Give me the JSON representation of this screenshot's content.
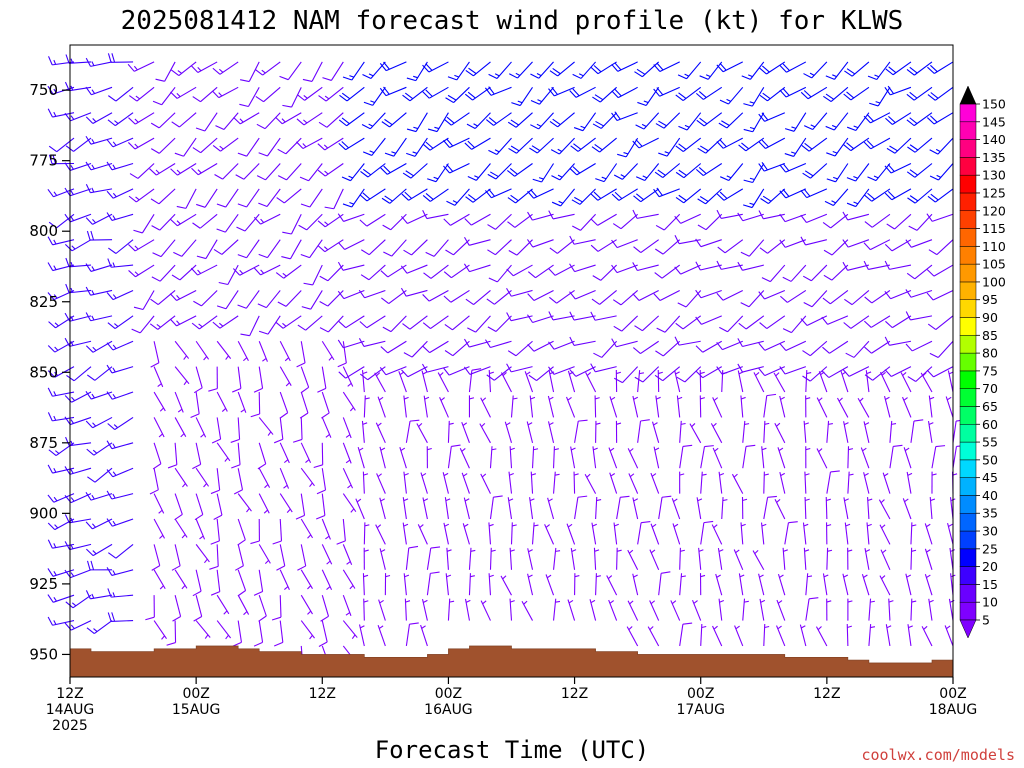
{
  "chart_data": {
    "type": "wind_profile",
    "title": "2025081412 NAM forecast wind profile (kt) for KLWS",
    "xlabel": "Forecast Time (UTC)",
    "credit": "coolwx.com/models",
    "y_axis": {
      "quantity": "pressure (hPa)",
      "range": [
        958,
        734
      ],
      "inverted": true,
      "ticks": [
        750,
        775,
        800,
        825,
        850,
        875,
        900,
        925,
        950
      ]
    },
    "x_axis": {
      "range_hours": [
        0,
        84
      ],
      "ticks": [
        {
          "hour": 0,
          "lines": [
            "12Z",
            "14AUG",
            "2025"
          ]
        },
        {
          "hour": 12,
          "lines": [
            "00Z",
            "15AUG"
          ]
        },
        {
          "hour": 24,
          "lines": [
            "12Z"
          ]
        },
        {
          "hour": 36,
          "lines": [
            "00Z",
            "16AUG"
          ]
        },
        {
          "hour": 48,
          "lines": [
            "12Z"
          ]
        },
        {
          "hour": 60,
          "lines": [
            "00Z",
            "17AUG"
          ]
        },
        {
          "hour": 72,
          "lines": [
            "12Z"
          ]
        },
        {
          "hour": 84,
          "lines": [
            "00Z",
            "18AUG"
          ]
        }
      ]
    },
    "surface_pressure": {
      "hours": [
        0,
        2,
        4,
        6,
        8,
        10,
        12,
        14,
        16,
        18,
        20,
        22,
        24,
        26,
        28,
        30,
        32,
        34,
        36,
        38,
        40,
        42,
        44,
        46,
        48,
        50,
        52,
        54,
        56,
        58,
        60,
        62,
        64,
        66,
        68,
        70,
        72,
        74,
        76,
        78,
        80,
        82,
        84
      ],
      "pressure": [
        948,
        949,
        949,
        949,
        948,
        948,
        947,
        947,
        948,
        949,
        949,
        950,
        950,
        950,
        951,
        951,
        951,
        950,
        948,
        947,
        947,
        948,
        948,
        948,
        948,
        949,
        949,
        950,
        950,
        950,
        950,
        950,
        950,
        950,
        951,
        951,
        951,
        952,
        953,
        953,
        953,
        952,
        950
      ]
    },
    "wind_speed_colorbar": {
      "units": "kt",
      "levels": [
        5,
        10,
        15,
        20,
        25,
        30,
        35,
        40,
        45,
        50,
        55,
        60,
        65,
        70,
        75,
        80,
        85,
        90,
        95,
        100,
        105,
        110,
        115,
        120,
        125,
        130,
        135,
        140,
        145,
        150
      ],
      "colors": [
        "#7f00ff",
        "#6a00ff",
        "#3d00ff",
        "#0000ff",
        "#0040ff",
        "#0066ff",
        "#008cff",
        "#00b2ff",
        "#00d8ff",
        "#00ffd8",
        "#00ffa0",
        "#00ff66",
        "#00ff33",
        "#00ff00",
        "#66ff00",
        "#b2ff00",
        "#ffff00",
        "#ffd800",
        "#ffb200",
        "#ff9900",
        "#ff8000",
        "#ff6600",
        "#ff4000",
        "#ff2000",
        "#ff0000",
        "#ff0040",
        "#ff0080",
        "#ff00b2",
        "#ff00d8",
        "#ff00ff"
      ]
    },
    "wind_field": {
      "time_step_hours": 2,
      "level_spacing_hpa": 9,
      "top_level_hpa": 740,
      "regimes": [
        {
          "hours": [
            0,
            6
          ],
          "pressure": [
            734,
            950
          ],
          "direction_deg": 250,
          "speed_kt": [
            12,
            18
          ],
          "color": "#3d00ff"
        },
        {
          "hours": [
            6,
            26
          ],
          "pressure": [
            734,
            830
          ],
          "direction_deg": 225,
          "speed_kt": [
            8,
            15
          ],
          "color": "#6a00ff"
        },
        {
          "hours": [
            6,
            26
          ],
          "pressure": [
            830,
            950
          ],
          "direction_deg": 160,
          "speed_kt": [
            5,
            10
          ],
          "color": "#7f00ff"
        },
        {
          "hours": [
            26,
            84
          ],
          "pressure": [
            734,
            790
          ],
          "direction_deg": 230,
          "speed_kt": [
            15,
            22
          ],
          "color": "#0000ff"
        },
        {
          "hours": [
            26,
            84
          ],
          "pressure": [
            790,
            850
          ],
          "direction_deg": 240,
          "speed_kt": [
            8,
            12
          ],
          "color": "#6a00ff"
        },
        {
          "hours": [
            26,
            84
          ],
          "pressure": [
            850,
            950
          ],
          "direction_deg": 350,
          "speed_kt": [
            3,
            8
          ],
          "color": "#7f00ff"
        }
      ]
    }
  },
  "colors": {
    "terrain": "#a0522d",
    "terrain_edge": "#7a3a1c",
    "barb_default": "#6600ff"
  }
}
